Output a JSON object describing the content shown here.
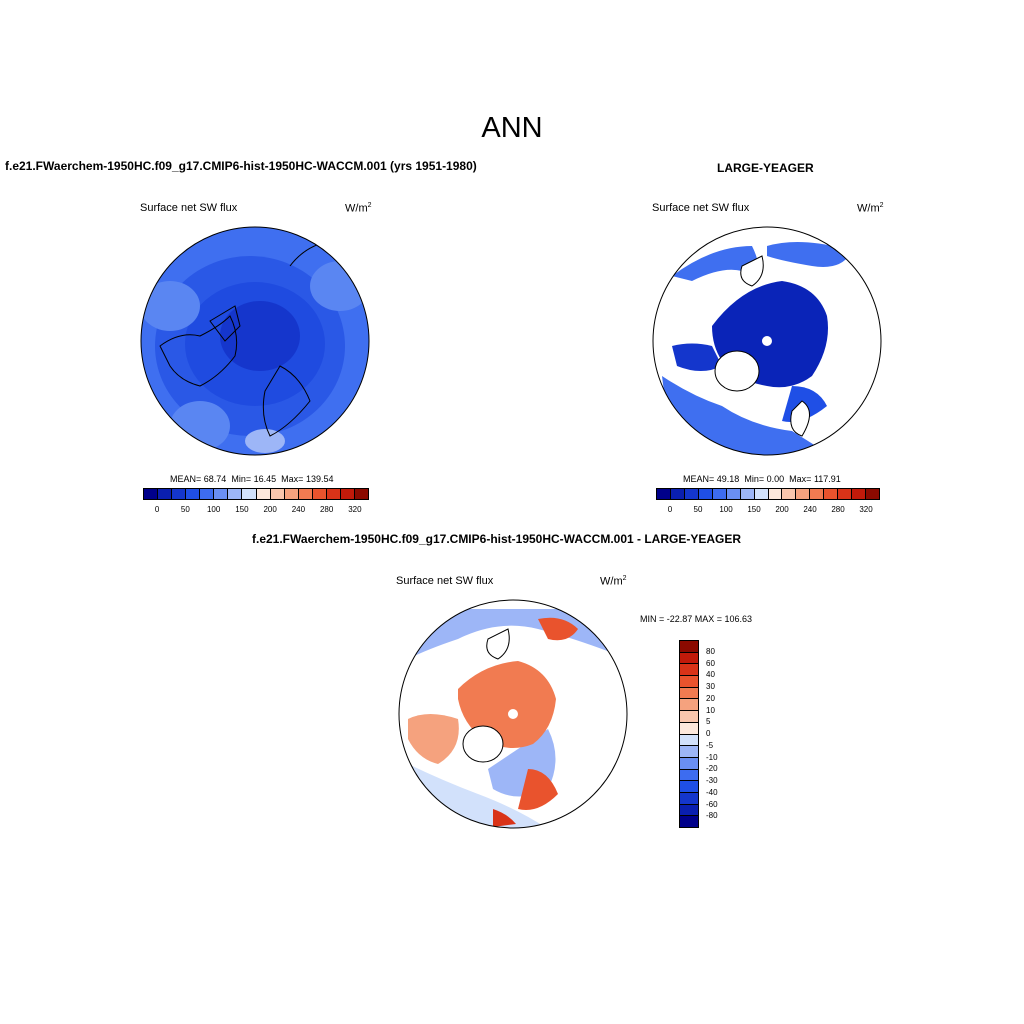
{
  "title": "ANN",
  "panel_left": {
    "case": "f.e21.FWaerchem-1950HC.f09_g17.CMIP6-hist-1950HC-WACCM.001 (yrs 1951-1980)",
    "variable": "Surface net SW flux",
    "units": "W/m",
    "units_sup": "2",
    "stats": {
      "mean_label": "MEAN=",
      "mean": "68.74",
      "min_label": "Min=",
      "min": "16.45",
      "max_label": "Max=",
      "max": "139.54"
    }
  },
  "panel_right": {
    "case": "LARGE-YEAGER",
    "variable": "Surface net SW flux",
    "units": "W/m",
    "units_sup": "2",
    "stats": {
      "mean_label": "MEAN=",
      "mean": "49.18",
      "min_label": "Min=",
      "min": "0.00",
      "max_label": "Max=",
      "max": "117.91"
    }
  },
  "panel_diff": {
    "case": "f.e21.FWaerchem-1950HC.f09_g17.CMIP6-hist-1950HC-WACCM.001 - LARGE-YEAGER",
    "variable": "Surface net SW flux",
    "units": "W/m",
    "units_sup": "2",
    "minmax": "MIN = -22.87 MAX = 106.63"
  },
  "colorbar_abs": {
    "colors": [
      "#00008a",
      "#0a1fb0",
      "#1436cc",
      "#1f4fe6",
      "#3d6cf0",
      "#6a8ff3",
      "#9db6f7",
      "#d2e1fb",
      "#fde8dc",
      "#f9c6ad",
      "#f5a27e",
      "#f17b51",
      "#e9532d",
      "#d93318",
      "#c21a0a",
      "#8b0a00"
    ],
    "ticks": [
      "0",
      "50",
      "100",
      "150",
      "200",
      "240",
      "280",
      "320"
    ]
  },
  "colorbar_diff": {
    "colors": [
      "#8b0a00",
      "#c21a0a",
      "#d93318",
      "#e9532d",
      "#f17b51",
      "#f5a27e",
      "#f9c6ad",
      "#fde8dc",
      "#d2e1fb",
      "#9db6f7",
      "#6a8ff3",
      "#3d6cf0",
      "#1f4fe6",
      "#1436cc",
      "#0a1fb0",
      "#00008a"
    ],
    "ticks": [
      "80",
      "60",
      "40",
      "30",
      "20",
      "10",
      "5",
      "0",
      "-5",
      "-10",
      "-20",
      "-30",
      "-40",
      "-60",
      "-80"
    ]
  }
}
